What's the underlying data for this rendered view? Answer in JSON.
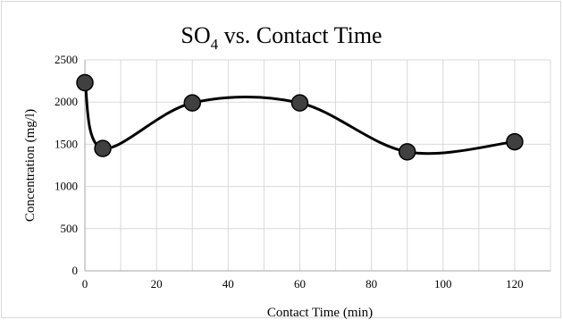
{
  "chart_data": {
    "type": "line",
    "title": {
      "main": "SO",
      "sub": "4",
      "rest": " vs. Contact Time"
    },
    "xlabel": "Contact Time (min)",
    "ylabel": "Concentration (mg/l)",
    "xlim": [
      0,
      130
    ],
    "ylim": [
      0,
      2500
    ],
    "xticks": [
      "0",
      "20",
      "40",
      "60",
      "80",
      "100",
      "120"
    ],
    "yticks": [
      "0",
      "500",
      "1000",
      "1500",
      "2000",
      "2500"
    ],
    "grid": true,
    "series": [
      {
        "x": [
          0,
          5,
          30,
          60,
          90,
          120
        ],
        "y": [
          2230,
          1450,
          1990,
          1990,
          1410,
          1530
        ],
        "line_color": "#000000",
        "marker_color": "#404040",
        "smooth": true
      }
    ]
  }
}
